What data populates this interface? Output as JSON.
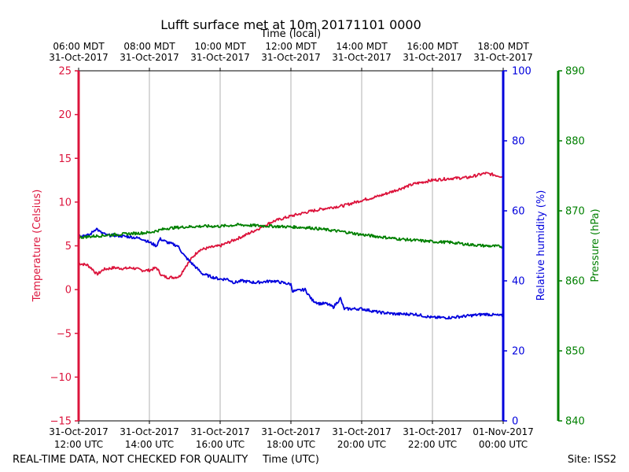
{
  "chart_data": {
    "type": "line",
    "title": "Lufft surface met at 10m 20171101 0000",
    "top_xlabel": "Time (local)",
    "xlabel": "Time (UTC)",
    "footer_left": "REAL-TIME DATA, NOT CHECKED FOR QUALITY",
    "footer_right": "Site: ISS2",
    "x_hours": [
      12,
      24
    ],
    "x_ticks_utc": [
      {
        "hour": 12,
        "date": "31-Oct-2017",
        "time": "12:00 UTC"
      },
      {
        "hour": 14,
        "date": "31-Oct-2017",
        "time": "14:00 UTC"
      },
      {
        "hour": 16,
        "date": "31-Oct-2017",
        "time": "16:00 UTC"
      },
      {
        "hour": 18,
        "date": "31-Oct-2017",
        "time": "18:00 UTC"
      },
      {
        "hour": 20,
        "date": "31-Oct-2017",
        "time": "20:00 UTC"
      },
      {
        "hour": 22,
        "date": "31-Oct-2017",
        "time": "22:00 UTC"
      },
      {
        "hour": 24,
        "date": "01-Nov-2017",
        "time": "00:00 UTC"
      }
    ],
    "x_ticks_local": [
      {
        "hour": 12,
        "time": "06:00 MDT",
        "date": "31-Oct-2017"
      },
      {
        "hour": 14,
        "time": "08:00 MDT",
        "date": "31-Oct-2017"
      },
      {
        "hour": 16,
        "time": "10:00 MDT",
        "date": "31-Oct-2017"
      },
      {
        "hour": 18,
        "time": "12:00 MDT",
        "date": "31-Oct-2017"
      },
      {
        "hour": 20,
        "time": "14:00 MDT",
        "date": "31-Oct-2017"
      },
      {
        "hour": 22,
        "time": "16:00 MDT",
        "date": "31-Oct-2017"
      },
      {
        "hour": 24,
        "time": "18:00 MDT",
        "date": "31-Oct-2017"
      }
    ],
    "grid": true,
    "axes": {
      "temperature": {
        "label": "Temperature (Celsius)",
        "range": [
          -15,
          25
        ],
        "ticks": [
          -15,
          -10,
          -5,
          0,
          5,
          10,
          15,
          20,
          25
        ],
        "color": "#dc143c"
      },
      "humidity": {
        "label": "Relative humidity (%)",
        "range": [
          0,
          100
        ],
        "ticks": [
          0,
          20,
          40,
          60,
          80,
          100
        ],
        "color": "#0000dd"
      },
      "pressure": {
        "label": "Pressure (hPa)",
        "range": [
          840,
          890
        ],
        "ticks": [
          840,
          850,
          860,
          870,
          880,
          890
        ],
        "color": "#008000"
      }
    },
    "series": [
      {
        "name": "Temperature",
        "axis": "temperature",
        "color": "#dc143c",
        "x": [
          12.0,
          12.25,
          12.4,
          12.5,
          12.55,
          12.7,
          13.0,
          13.3,
          13.5,
          13.8,
          14.0,
          14.2,
          14.35,
          14.5,
          14.7,
          14.85,
          15.0,
          15.2,
          15.4,
          15.7,
          16.0,
          16.3,
          16.7,
          17.0,
          17.5,
          18.0,
          18.5,
          19.0,
          19.5,
          20.0,
          20.5,
          21.0,
          21.5,
          22.0,
          22.5,
          23.0,
          23.5,
          24.0
        ],
        "y": [
          3.0,
          2.8,
          2.3,
          1.8,
          1.8,
          2.3,
          2.5,
          2.4,
          2.5,
          2.2,
          2.2,
          2.5,
          1.6,
          1.4,
          1.4,
          1.5,
          2.5,
          3.6,
          4.5,
          4.8,
          5.0,
          5.5,
          6.2,
          6.8,
          7.8,
          8.4,
          8.9,
          9.3,
          9.6,
          10.2,
          10.7,
          11.4,
          12.1,
          12.5,
          12.7,
          12.8,
          13.3,
          12.9
        ]
      },
      {
        "name": "Relative humidity",
        "axis": "humidity",
        "color": "#0000dd",
        "x": [
          12.0,
          12.3,
          12.5,
          12.6,
          12.8,
          13.0,
          13.5,
          13.8,
          14.0,
          14.2,
          14.3,
          14.5,
          14.8,
          15.0,
          15.3,
          15.5,
          15.8,
          16.0,
          16.2,
          16.4,
          16.6,
          17.0,
          17.5,
          18.0,
          18.05,
          18.4,
          18.6,
          18.8,
          19.0,
          19.2,
          19.4,
          19.5,
          19.6,
          20.0,
          20.5,
          21.0,
          21.5,
          22.0,
          22.5,
          23.0,
          23.5,
          24.0
        ],
        "y": [
          53,
          53,
          55,
          54,
          53,
          53,
          52.5,
          52,
          51,
          50,
          52,
          51,
          50,
          47,
          44,
          42,
          41,
          40.5,
          40.5,
          39.5,
          40,
          39.5,
          40,
          39,
          37,
          37.5,
          34.5,
          33.5,
          33.5,
          32.5,
          35,
          32,
          32,
          32,
          31,
          30.5,
          30.5,
          29.5,
          29.5,
          30,
          30.5,
          30
        ]
      },
      {
        "name": "Pressure",
        "axis": "pressure",
        "color": "#008000",
        "x": [
          12.0,
          12.5,
          13.0,
          14.0,
          14.5,
          15.0,
          15.5,
          16.0,
          16.5,
          17.0,
          17.5,
          18.0,
          18.5,
          19.0,
          19.5,
          20.0,
          20.5,
          21.0,
          21.5,
          22.0,
          22.5,
          23.0,
          23.5,
          24.0
        ],
        "y": [
          866.2,
          866.4,
          866.6,
          866.9,
          867.5,
          867.7,
          867.8,
          867.8,
          868.0,
          867.9,
          867.8,
          867.7,
          867.6,
          867.3,
          867.0,
          866.6,
          866.3,
          866.0,
          865.8,
          865.6,
          865.5,
          865.2,
          865.0,
          864.9
        ]
      }
    ]
  }
}
